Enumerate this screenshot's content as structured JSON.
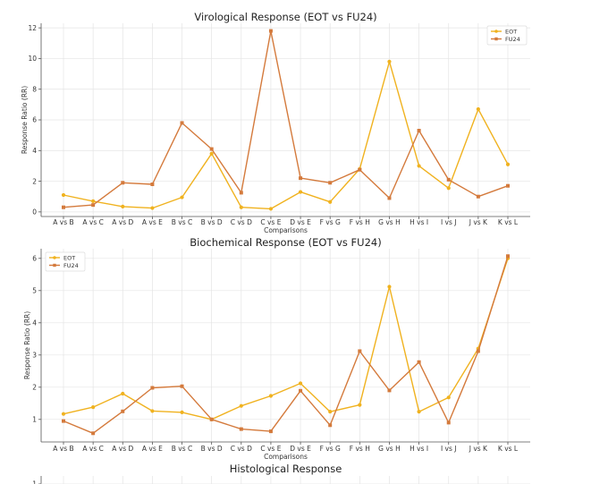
{
  "colors": {
    "eot": "#f0b21f",
    "fu24": "#d47a3c"
  },
  "chart_data": [
    {
      "type": "line",
      "title": "Virological Response (EOT vs FU24)",
      "xlabel": "Comparisons",
      "ylabel": "Response Ratio (RR)",
      "categories": [
        "A vs B",
        "A vs C",
        "A vs D",
        "A vs E",
        "B vs C",
        "B vs D",
        "C vs D",
        "C vs E",
        "D vs E",
        "F vs G",
        "F vs H",
        "G vs H",
        "H vs I",
        "I vs J",
        "J vs K",
        "K vs L"
      ],
      "series": [
        {
          "name": "EOT",
          "values": [
            1.1,
            0.7,
            0.35,
            0.25,
            0.95,
            3.8,
            0.3,
            0.2,
            1.3,
            0.65,
            2.8,
            9.8,
            3.0,
            1.55,
            6.7,
            3.1
          ]
        },
        {
          "name": "FU24",
          "values": [
            0.3,
            0.45,
            1.9,
            1.8,
            5.8,
            4.1,
            1.25,
            11.8,
            2.2,
            1.9,
            2.75,
            0.9,
            5.3,
            2.1,
            1.0,
            1.7
          ]
        }
      ],
      "ylim": [
        -0.3,
        12.3
      ],
      "yticks": [
        0,
        2,
        4,
        6,
        8,
        10,
        12
      ],
      "legend": "top-right",
      "grid": true
    },
    {
      "type": "line",
      "title": "Biochemical Response (EOT vs FU24)",
      "xlabel": "Comparisons",
      "ylabel": "Response Ratio (RR)",
      "categories": [
        "A vs B",
        "A vs C",
        "A vs D",
        "A vs E",
        "B vs C",
        "B vs D",
        "C vs D",
        "C vs E",
        "D vs E",
        "F vs G",
        "F vs H",
        "G vs H",
        "H vs I",
        "I vs J",
        "J vs K",
        "K vs L"
      ],
      "series": [
        {
          "name": "EOT",
          "values": [
            1.17,
            1.38,
            1.8,
            1.26,
            1.22,
            1.0,
            1.42,
            1.73,
            2.12,
            1.24,
            1.45,
            5.12,
            1.24,
            1.68,
            3.2,
            6.0
          ]
        },
        {
          "name": "FU24",
          "values": [
            0.95,
            0.57,
            1.25,
            1.98,
            2.03,
            1.0,
            0.7,
            0.63,
            1.89,
            0.82,
            3.12,
            1.9,
            2.78,
            0.9,
            3.12,
            6.07
          ]
        }
      ],
      "ylim": [
        0.3,
        6.3
      ],
      "yticks": [
        1,
        2,
        3,
        4,
        5,
        6
      ],
      "legend": "top-left",
      "grid": true
    },
    {
      "type": "line",
      "title": "Histological Response",
      "yticks": [
        1
      ],
      "partial": true
    }
  ]
}
